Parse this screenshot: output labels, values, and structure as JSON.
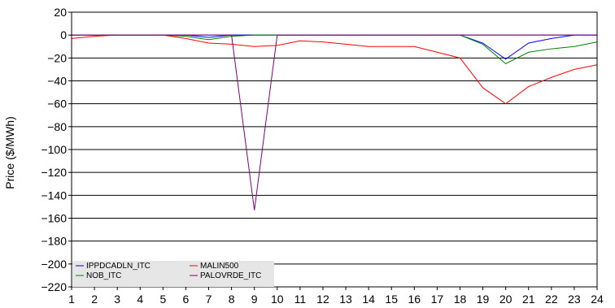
{
  "chart_data": {
    "type": "line",
    "title": "",
    "xlabel": "",
    "ylabel": "Price ($/MWh)",
    "x": [
      1,
      2,
      3,
      4,
      5,
      6,
      7,
      8,
      9,
      10,
      11,
      12,
      13,
      14,
      15,
      16,
      17,
      18,
      19,
      20,
      21,
      22,
      23,
      24
    ],
    "xlim": [
      1,
      24
    ],
    "ylim": [
      -220,
      20
    ],
    "yticks": [
      20,
      0,
      -20,
      -40,
      -60,
      -80,
      -100,
      -120,
      -140,
      -160,
      -180,
      -200,
      -220
    ],
    "xtick_labels": [
      "1",
      "2",
      "3",
      "4",
      "5",
      "6",
      "7",
      "8",
      "9",
      "10",
      "11",
      "12",
      "13",
      "14",
      "15",
      "16",
      "17",
      "18",
      "19",
      "20",
      "21",
      "22",
      "23",
      "24"
    ],
    "ytick_labels": [
      "20",
      "0",
      "−20",
      "−40",
      "−60",
      "−80",
      "−100",
      "−120",
      "−140",
      "−160",
      "−180",
      "−200",
      "−220"
    ],
    "grid": "horizontal",
    "legend_position": "bottom-left",
    "series": [
      {
        "name": "IPPDCADLN_ITC",
        "color": "#0000ff",
        "values": [
          0,
          0,
          0,
          0,
          0,
          0,
          -2,
          0,
          0,
          0,
          0,
          0,
          0,
          0,
          0,
          0,
          0,
          0,
          -7,
          -21,
          -7,
          -3,
          0,
          0
        ]
      },
      {
        "name": "MALIN500",
        "color": "#ff0000",
        "values": [
          -3,
          -1,
          0,
          0,
          0,
          -3,
          -7,
          -8,
          -10,
          -9,
          -5,
          -6,
          -8,
          -10,
          -10,
          -10,
          -15,
          -20,
          -46,
          -60,
          -45,
          -37,
          -30,
          -26
        ]
      },
      {
        "name": "NOB_ITC",
        "color": "#008000",
        "values": [
          0,
          0,
          0,
          0,
          0,
          -1,
          -4,
          -1,
          0,
          0,
          0,
          0,
          0,
          0,
          0,
          0,
          0,
          0,
          -8,
          -25,
          -15,
          -12,
          -10,
          -6
        ]
      },
      {
        "name": "PALOVRDE_ITC",
        "color": "#800080",
        "values": [
          0,
          0,
          0,
          0,
          0,
          0,
          0,
          0,
          -153,
          0,
          0,
          0,
          0,
          0,
          0,
          0,
          0,
          0,
          0,
          0,
          0,
          0,
          0,
          0
        ]
      }
    ]
  }
}
